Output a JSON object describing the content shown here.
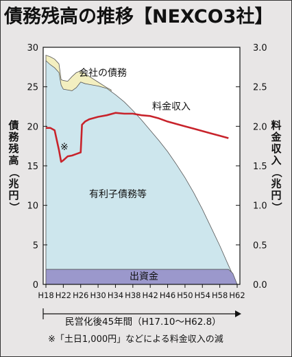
{
  "title": "債務残高の推移【NEXCO3社】",
  "left_axis_label": "債務残高（兆円）",
  "right_axis_label": "料金収入（兆円）",
  "colors": {
    "background": "#e8e6e6",
    "plot_background": "#ffffff",
    "company_debt": "#f3efc0",
    "other_debt": "#cde6ed",
    "capital": "#9b98cc",
    "toll_revenue_line": "#c8232b"
  },
  "chart_data": {
    "type": "area",
    "x_unit": "fiscal_year_heisei",
    "x_range": [
      18,
      62
    ],
    "x_ticks": [
      "H18",
      "H22",
      "H26",
      "H30",
      "H34",
      "H38",
      "H42",
      "H46",
      "H50",
      "H54",
      "H58",
      "H62"
    ],
    "y_left": {
      "range": [
        0,
        30
      ],
      "ticks": [
        0,
        5,
        10,
        15,
        20,
        25,
        30
      ]
    },
    "y_right": {
      "range": [
        0.0,
        3.0
      ],
      "ticks": [
        "0.0",
        "0.5",
        "1.0",
        "1.5",
        "2.0",
        "2.5",
        "3.0"
      ]
    },
    "labels": {
      "company_debt": "会社の債務",
      "toll_revenue": "料金収入",
      "other_debt": "有利子債務等",
      "capital": "出資金",
      "note_mark": "※"
    },
    "series": [
      {
        "name": "出資金",
        "axis": "left",
        "points": [
          [
            18,
            1.9
          ],
          [
            60,
            1.9
          ],
          [
            61,
            1.4
          ],
          [
            62,
            0
          ]
        ]
      },
      {
        "name": "有利子債務等",
        "axis": "left",
        "points": [
          [
            18,
            28.3
          ],
          [
            19,
            27.8
          ],
          [
            20,
            27.4
          ],
          [
            21,
            26.8
          ],
          [
            21.5,
            25.2
          ],
          [
            22,
            24.7
          ],
          [
            23,
            24.6
          ],
          [
            24,
            24.5
          ],
          [
            25,
            24.9
          ],
          [
            26,
            25.6
          ],
          [
            27,
            25.4
          ],
          [
            28,
            25.3
          ],
          [
            30,
            25.1
          ],
          [
            32,
            24.8
          ],
          [
            34,
            24.0
          ],
          [
            36,
            23.1
          ],
          [
            38,
            22.0
          ],
          [
            40,
            20.8
          ],
          [
            42,
            19.5
          ],
          [
            44,
            18.2
          ],
          [
            46,
            16.8
          ],
          [
            48,
            15.2
          ],
          [
            50,
            13.5
          ],
          [
            52,
            11.6
          ],
          [
            54,
            9.5
          ],
          [
            56,
            7.2
          ],
          [
            58,
            4.9
          ],
          [
            60,
            2.4
          ],
          [
            61,
            1.2
          ],
          [
            62,
            0
          ]
        ]
      },
      {
        "name": "会社の債務",
        "axis": "left",
        "points": [
          [
            18,
            29.0
          ],
          [
            19,
            28.8
          ],
          [
            20,
            28.5
          ],
          [
            21,
            27.9
          ],
          [
            21.5,
            25.9
          ],
          [
            22,
            25.8
          ],
          [
            23,
            25.7
          ],
          [
            24,
            26.3
          ],
          [
            25,
            26.8
          ],
          [
            26,
            27.0
          ],
          [
            27,
            26.7
          ],
          [
            28,
            26.3
          ],
          [
            30,
            25.6
          ],
          [
            32,
            24.9
          ],
          [
            33,
            24.6
          ]
        ]
      },
      {
        "name": "料金収入",
        "axis": "right",
        "points": [
          [
            18,
            1.98
          ],
          [
            19,
            1.98
          ],
          [
            20,
            1.95
          ],
          [
            21,
            1.7
          ],
          [
            21.5,
            1.55
          ],
          [
            22,
            1.57
          ],
          [
            23,
            1.62
          ],
          [
            24,
            1.63
          ],
          [
            25,
            1.65
          ],
          [
            26,
            1.67
          ],
          [
            26.3,
            2.02
          ],
          [
            27,
            2.06
          ],
          [
            28,
            2.09
          ],
          [
            30,
            2.12
          ],
          [
            32,
            2.14
          ],
          [
            34,
            2.17
          ],
          [
            36,
            2.16
          ],
          [
            38,
            2.16
          ],
          [
            40,
            2.14
          ],
          [
            42,
            2.13
          ],
          [
            44,
            2.1
          ],
          [
            46,
            2.06
          ],
          [
            48,
            2.03
          ],
          [
            50,
            2.0
          ],
          [
            52,
            1.97
          ],
          [
            54,
            1.94
          ],
          [
            56,
            1.91
          ],
          [
            58,
            1.88
          ],
          [
            60,
            1.85
          ]
        ]
      }
    ]
  },
  "footer": {
    "period": "民営化後45年間（H17.10〜H62.8）",
    "note": "※「土日1,000円」などによる料金収入の減"
  }
}
